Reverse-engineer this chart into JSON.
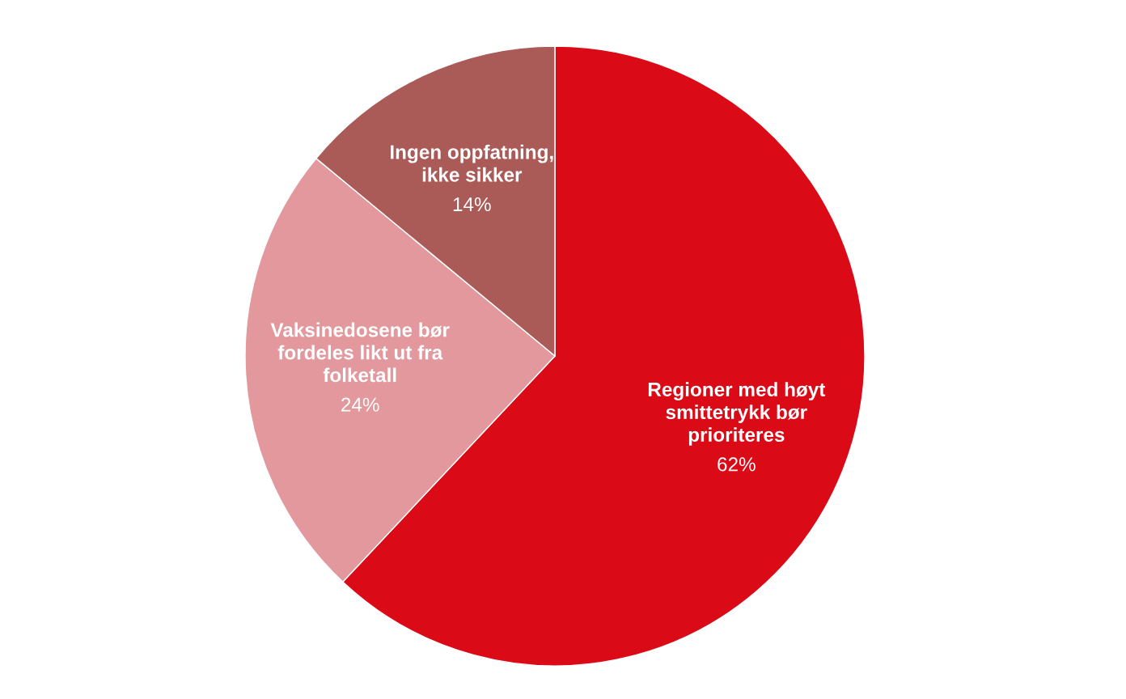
{
  "chart_data": {
    "type": "pie",
    "categories": [
      "Regioner med høyt\nsmittetrykk bør\nprioriteres",
      "Vaksinedosene bør\nfordeles likt ut fra\nfolketall",
      "Ingen oppfatning,\nikke sikker"
    ],
    "values": [
      62,
      24,
      14
    ],
    "colors": [
      "#db0a17",
      "#e2989c",
      "#ab5b57"
    ],
    "value_labels": [
      "62%",
      "24%",
      "14%"
    ]
  }
}
